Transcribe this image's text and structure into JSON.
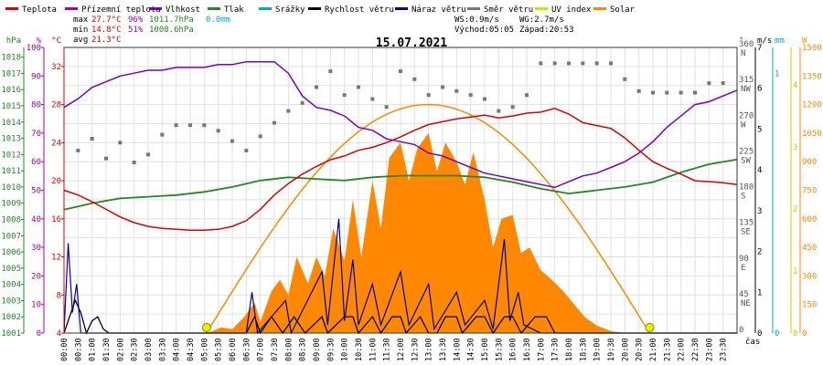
{
  "legend": [
    {
      "label": "Teplota",
      "color": "#dd0000"
    },
    {
      "label": "Přízemní teplota",
      "color": "#aa00aa"
    },
    {
      "label": "Vlhkost",
      "color": "#7700cc"
    },
    {
      "label": "Tlak",
      "color": "#228822"
    },
    {
      "label": "Srážky",
      "color": "#00aacc"
    },
    {
      "label": "Rychlost větru",
      "color": "#000000"
    },
    {
      "label": "Náraz větru",
      "color": "#0000aa"
    },
    {
      "label": "Směr větru",
      "color": "#777777"
    },
    {
      "label": "UV index",
      "color": "#dddd00"
    },
    {
      "label": "Solar",
      "color": "#ff8800"
    }
  ],
  "stats": {
    "max_label": "max",
    "max_temp": "27.7°C",
    "max_hum": "96%",
    "max_press": "1011.7hPa",
    "max_rain": "0.0mm",
    "min_label": "min",
    "min_temp": "14.8°C",
    "min_hum": "51%",
    "min_press": "1008.6hPa",
    "avg_label": "avg",
    "avg_temp": "21.3°C",
    "ws": "WS:0.9m/s",
    "wg": "WG:2.7m/s",
    "sunrise": "Východ:05:05",
    "sunset": "Západ:20:53"
  },
  "chart_data": {
    "type": "line",
    "title": "15.07.2021",
    "xlabel": "čas",
    "x_ticks": [
      "00:00",
      "00:30",
      "01:00",
      "01:30",
      "02:00",
      "02:30",
      "03:00",
      "03:30",
      "04:00",
      "04:30",
      "05:00",
      "05:30",
      "06:00",
      "06:30",
      "07:00",
      "07:30",
      "08:00",
      "08:30",
      "09:00",
      "09:30",
      "10:00",
      "10:30",
      "11:00",
      "11:30",
      "12:00",
      "12:30",
      "13:00",
      "13:30",
      "14:00",
      "14:30",
      "15:00",
      "15:30",
      "16:00",
      "16:30",
      "17:00",
      "17:30",
      "18:00",
      "18:30",
      "19:00",
      "19:30",
      "20:00",
      "20:30",
      "21:00",
      "21:30",
      "22:00",
      "22:30",
      "23:00",
      "23:30"
    ],
    "axes": {
      "pressure": {
        "unit": "hPa",
        "color": "#228822",
        "ticks": [
          "1001",
          "1002",
          "1003",
          "1004",
          "1005",
          "1006",
          "1007",
          "1008",
          "1009",
          "1010",
          "1011",
          "1012",
          "1013",
          "1014",
          "1015",
          "1016",
          "1017",
          "1018"
        ]
      },
      "humidity": {
        "unit": "%",
        "color": "#aa00aa",
        "ticks": [
          "0",
          "10",
          "20",
          "30",
          "40",
          "50",
          "60",
          "70",
          "80",
          "90",
          "100"
        ]
      },
      "temperature": {
        "unit": "°C",
        "color": "#dd0000",
        "ticks": [
          "4",
          "8",
          "12",
          "16",
          "20",
          "24",
          "28",
          "32"
        ]
      },
      "direction": {
        "unit": "°",
        "color": "#555555",
        "ticks": [
          {
            "deg": "0",
            "dir": ""
          },
          {
            "deg": "45",
            "dir": "NE"
          },
          {
            "deg": "90",
            "dir": "E"
          },
          {
            "deg": "135",
            "dir": "SE"
          },
          {
            "deg": "180",
            "dir": "S"
          },
          {
            "deg": "225",
            "dir": "SW"
          },
          {
            "deg": "270",
            "dir": "W"
          },
          {
            "deg": "315",
            "dir": "NW"
          },
          {
            "deg": "360",
            "dir": "N"
          }
        ]
      },
      "wind": {
        "unit": "m/s",
        "color": "#000000",
        "ticks": [
          "0",
          "1",
          "2",
          "3",
          "4",
          "5",
          "6",
          "7"
        ]
      },
      "rain": {
        "unit": "mm",
        "color": "#00aacc",
        "ticks": [
          "0",
          "1"
        ]
      },
      "uv": {
        "unit": "",
        "color": "#cccc00",
        "ticks": [
          "0",
          "1",
          "2",
          "3",
          "4"
        ]
      },
      "solar": {
        "unit": "W",
        "color": "#ff8800",
        "ticks": [
          "0",
          "150",
          "300",
          "450",
          "600",
          "750",
          "900",
          "1050",
          "1200",
          "1350",
          "1500"
        ]
      }
    },
    "ylim_temp": [
      4,
      34
    ],
    "temperature": [
      [
        0,
        19.0
      ],
      [
        0.5,
        18.5
      ],
      [
        1,
        17.8
      ],
      [
        1.5,
        17.0
      ],
      [
        2,
        16.2
      ],
      [
        2.5,
        15.6
      ],
      [
        3,
        15.2
      ],
      [
        3.5,
        15.0
      ],
      [
        4,
        14.9
      ],
      [
        4.5,
        14.8
      ],
      [
        5,
        14.8
      ],
      [
        5.5,
        14.9
      ],
      [
        6,
        15.2
      ],
      [
        6.5,
        15.8
      ],
      [
        7,
        17.0
      ],
      [
        7.5,
        18.5
      ],
      [
        8,
        19.7
      ],
      [
        8.5,
        20.7
      ],
      [
        9,
        21.5
      ],
      [
        9.5,
        22.2
      ],
      [
        10,
        22.6
      ],
      [
        10.5,
        23.2
      ],
      [
        11,
        23.5
      ],
      [
        11.5,
        24.0
      ],
      [
        12,
        24.6
      ],
      [
        12.5,
        25.3
      ],
      [
        13,
        25.9
      ],
      [
        13.5,
        26.2
      ],
      [
        14,
        26.5
      ],
      [
        14.5,
        26.7
      ],
      [
        15,
        26.9
      ],
      [
        15.5,
        26.6
      ],
      [
        16,
        26.8
      ],
      [
        16.5,
        27.1
      ],
      [
        17,
        27.2
      ],
      [
        17.5,
        27.6
      ],
      [
        18,
        27.0
      ],
      [
        18.5,
        26.1
      ],
      [
        19,
        25.8
      ],
      [
        19.5,
        25.5
      ],
      [
        20,
        24.5
      ],
      [
        20.5,
        23.2
      ],
      [
        21,
        22.0
      ],
      [
        21.5,
        21.3
      ],
      [
        22,
        20.7
      ],
      [
        22.5,
        20.0
      ],
      [
        23,
        19.9
      ],
      [
        23.5,
        19.8
      ],
      [
        24,
        19.6
      ]
    ],
    "humidity": [
      [
        0,
        79
      ],
      [
        0.5,
        82
      ],
      [
        1,
        86
      ],
      [
        1.5,
        88
      ],
      [
        2,
        90
      ],
      [
        2.5,
        91
      ],
      [
        3,
        92
      ],
      [
        3.5,
        92
      ],
      [
        4,
        93
      ],
      [
        4.5,
        93
      ],
      [
        5,
        93
      ],
      [
        5.5,
        94
      ],
      [
        6,
        94
      ],
      [
        6.5,
        95
      ],
      [
        7,
        95
      ],
      [
        7.5,
        95
      ],
      [
        8,
        91
      ],
      [
        8.5,
        83
      ],
      [
        9,
        79
      ],
      [
        9.5,
        78
      ],
      [
        10,
        76
      ],
      [
        10.5,
        72
      ],
      [
        11,
        71
      ],
      [
        11.5,
        68
      ],
      [
        12,
        67
      ],
      [
        12.5,
        66
      ],
      [
        13,
        63
      ],
      [
        13.5,
        62
      ],
      [
        14,
        60
      ],
      [
        14.5,
        58
      ],
      [
        15,
        56
      ],
      [
        15.5,
        55
      ],
      [
        16,
        54
      ],
      [
        16.5,
        53
      ],
      [
        17,
        52
      ],
      [
        17.5,
        51
      ],
      [
        18,
        53
      ],
      [
        18.5,
        55
      ],
      [
        19,
        56
      ],
      [
        19.5,
        58
      ],
      [
        20,
        60
      ],
      [
        20.5,
        63
      ],
      [
        21,
        67
      ],
      [
        21.5,
        72
      ],
      [
        22,
        76
      ],
      [
        22.5,
        80
      ],
      [
        23,
        81
      ],
      [
        23.5,
        83
      ],
      [
        24,
        85
      ]
    ],
    "pressure": [
      [
        0,
        1008.6
      ],
      [
        1,
        1009.0
      ],
      [
        2,
        1009.3
      ],
      [
        3,
        1009.4
      ],
      [
        4,
        1009.5
      ],
      [
        5,
        1009.7
      ],
      [
        6,
        1010.0
      ],
      [
        7,
        1010.4
      ],
      [
        8,
        1010.6
      ],
      [
        9,
        1010.5
      ],
      [
        10,
        1010.4
      ],
      [
        11,
        1010.6
      ],
      [
        12,
        1010.7
      ],
      [
        13,
        1010.7
      ],
      [
        14,
        1010.7
      ],
      [
        15,
        1010.6
      ],
      [
        16,
        1010.3
      ],
      [
        17,
        1009.9
      ],
      [
        18,
        1009.6
      ],
      [
        19,
        1009.8
      ],
      [
        20,
        1010.0
      ],
      [
        21,
        1010.3
      ],
      [
        22,
        1010.9
      ],
      [
        23,
        1011.4
      ],
      [
        24,
        1011.7
      ]
    ],
    "wind_speed": [
      [
        0,
        0
      ],
      [
        0.2,
        0.4
      ],
      [
        0.4,
        0.8
      ],
      [
        0.6,
        0.5
      ],
      [
        0.8,
        0
      ],
      [
        1.0,
        0.3
      ],
      [
        1.2,
        0.4
      ],
      [
        1.4,
        0.1
      ],
      [
        1.6,
        0
      ],
      [
        5.5,
        0
      ],
      [
        6.5,
        0
      ],
      [
        6.8,
        0.4
      ],
      [
        7.0,
        0
      ],
      [
        7.4,
        0.4
      ],
      [
        7.6,
        0.2
      ],
      [
        7.8,
        0
      ],
      [
        8.2,
        0.4
      ],
      [
        8.4,
        0.2
      ],
      [
        8.6,
        0
      ],
      [
        9.2,
        0.4
      ],
      [
        9.4,
        0
      ],
      [
        10.0,
        0.4
      ],
      [
        10.3,
        0.4
      ],
      [
        10.5,
        0
      ],
      [
        11.0,
        0.4
      ],
      [
        11.3,
        0
      ],
      [
        11.7,
        0.4
      ],
      [
        12.0,
        0.4
      ],
      [
        12.2,
        0
      ],
      [
        12.7,
        0.4
      ],
      [
        13.0,
        0
      ],
      [
        13.3,
        0
      ],
      [
        13.6,
        0.4
      ],
      [
        14.0,
        0.4
      ],
      [
        14.2,
        0
      ],
      [
        14.7,
        0.4
      ],
      [
        15.0,
        0.4
      ],
      [
        15.3,
        0
      ],
      [
        15.7,
        0.4
      ],
      [
        16.0,
        0.4
      ],
      [
        16.3,
        0
      ],
      [
        16.8,
        0.4
      ],
      [
        17.2,
        0.4
      ],
      [
        17.5,
        0
      ],
      [
        18,
        0
      ],
      [
        24,
        0
      ]
    ],
    "wind_gust": [
      [
        0,
        0
      ],
      [
        0.15,
        2.2
      ],
      [
        0.3,
        0.5
      ],
      [
        0.45,
        1.2
      ],
      [
        0.6,
        0
      ],
      [
        6.5,
        0
      ],
      [
        6.7,
        1.0
      ],
      [
        6.9,
        0
      ],
      [
        7.9,
        0.8
      ],
      [
        8.1,
        0
      ],
      [
        9.2,
        1.5
      ],
      [
        9.4,
        0.2
      ],
      [
        9.8,
        2.8
      ],
      [
        10.0,
        0.3
      ],
      [
        10.3,
        1.8
      ],
      [
        10.5,
        0.2
      ],
      [
        11.0,
        1.2
      ],
      [
        11.3,
        0.2
      ],
      [
        12.0,
        1.5
      ],
      [
        12.3,
        0.2
      ],
      [
        13.0,
        1.2
      ],
      [
        13.2,
        0.1
      ],
      [
        14.0,
        1.0
      ],
      [
        14.3,
        0.2
      ],
      [
        15.0,
        0.8
      ],
      [
        15.3,
        0.1
      ],
      [
        15.7,
        2.3
      ],
      [
        15.9,
        0.3
      ],
      [
        16.2,
        1.0
      ],
      [
        16.4,
        0.2
      ],
      [
        17,
        0
      ],
      [
        24,
        0
      ]
    ],
    "solar": [
      [
        0,
        0
      ],
      [
        5.0,
        0
      ],
      [
        5.3,
        10
      ],
      [
        5.6,
        30
      ],
      [
        6.0,
        20
      ],
      [
        6.4,
        80
      ],
      [
        6.8,
        160
      ],
      [
        7.0,
        60
      ],
      [
        7.4,
        220
      ],
      [
        7.7,
        280
      ],
      [
        8.0,
        200
      ],
      [
        8.3,
        400
      ],
      [
        8.7,
        260
      ],
      [
        9.0,
        400
      ],
      [
        9.3,
        300
      ],
      [
        9.6,
        550
      ],
      [
        10.0,
        380
      ],
      [
        10.3,
        700
      ],
      [
        10.6,
        400
      ],
      [
        11.0,
        800
      ],
      [
        11.3,
        550
      ],
      [
        11.6,
        920
      ],
      [
        12.0,
        1000
      ],
      [
        12.3,
        800
      ],
      [
        12.6,
        970
      ],
      [
        13.0,
        1050
      ],
      [
        13.3,
        850
      ],
      [
        13.6,
        1000
      ],
      [
        14.0,
        900
      ],
      [
        14.3,
        780
      ],
      [
        14.6,
        950
      ],
      [
        15.0,
        700
      ],
      [
        15.3,
        450
      ],
      [
        15.6,
        600
      ],
      [
        16.0,
        620
      ],
      [
        16.3,
        420
      ],
      [
        16.6,
        450
      ],
      [
        17.0,
        330
      ],
      [
        17.4,
        280
      ],
      [
        17.8,
        220
      ],
      [
        18.2,
        150
      ],
      [
        18.6,
        80
      ],
      [
        19.0,
        40
      ],
      [
        19.5,
        10
      ],
      [
        20.0,
        0
      ],
      [
        24,
        0
      ]
    ],
    "solar_theoretical_peak": 1200,
    "direction_points": [
      [
        0.5,
        230
      ],
      [
        1.0,
        245
      ],
      [
        1.5,
        220
      ],
      [
        2.0,
        240
      ],
      [
        2.5,
        215
      ],
      [
        3.0,
        225
      ],
      [
        3.5,
        250
      ],
      [
        4.0,
        262
      ],
      [
        4.5,
        262
      ],
      [
        5.0,
        262
      ],
      [
        5.5,
        255
      ],
      [
        6.0,
        242
      ],
      [
        6.5,
        230
      ],
      [
        7.0,
        248
      ],
      [
        7.5,
        265
      ],
      [
        8.0,
        280
      ],
      [
        8.5,
        290
      ],
      [
        9.0,
        310
      ],
      [
        9.5,
        330
      ],
      [
        10.0,
        300
      ],
      [
        10.5,
        310
      ],
      [
        11.0,
        295
      ],
      [
        11.5,
        285
      ],
      [
        12.0,
        330
      ],
      [
        12.5,
        320
      ],
      [
        13.0,
        300
      ],
      [
        13.5,
        310
      ],
      [
        14.0,
        305
      ],
      [
        14.5,
        300
      ],
      [
        15.0,
        295
      ],
      [
        15.5,
        280
      ],
      [
        16.0,
        285
      ],
      [
        16.5,
        300
      ],
      [
        17.0,
        340
      ],
      [
        17.5,
        340
      ],
      [
        18.0,
        340
      ],
      [
        18.5,
        340
      ],
      [
        19.0,
        340
      ],
      [
        19.5,
        340
      ],
      [
        20.0,
        320
      ],
      [
        20.5,
        305
      ],
      [
        21.0,
        303
      ],
      [
        21.5,
        303
      ],
      [
        22.0,
        303
      ],
      [
        22.5,
        303
      ],
      [
        23.0,
        315
      ],
      [
        23.5,
        315
      ]
    ],
    "uv_markers": [
      {
        "time": "05:05"
      },
      {
        "time": "20:53"
      }
    ]
  }
}
